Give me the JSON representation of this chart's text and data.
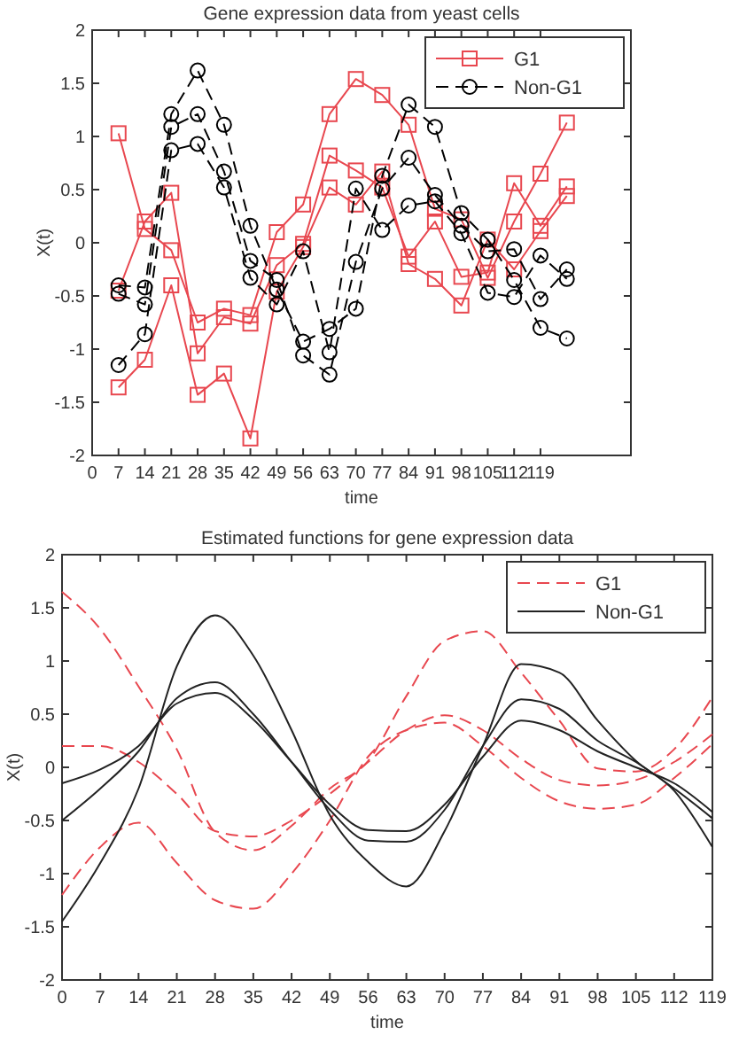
{
  "chart_data": [
    {
      "type": "line",
      "title": "Gene expression data from yeast cells",
      "xlabel": "time",
      "ylabel": "X(t)",
      "x": [
        7,
        14,
        21,
        28,
        35,
        42,
        49,
        56,
        63,
        70,
        77,
        84,
        91,
        98,
        105,
        112,
        119,
        126
      ],
      "xlim": [
        0,
        143
      ],
      "xticks": [
        0,
        7,
        14,
        21,
        28,
        35,
        42,
        49,
        56,
        63,
        70,
        77,
        84,
        91,
        98,
        105,
        112,
        119
      ],
      "ylim": [
        -2,
        2
      ],
      "yticks": [
        -2,
        -1.5,
        -1,
        -0.5,
        0,
        0.5,
        1,
        1.5,
        2
      ],
      "legend": "top right",
      "grid": false,
      "series": [
        {
          "name": "G1",
          "color": "#e8474f",
          "marker": "square",
          "line_style": "solid",
          "values": [
            1.03,
            0.13,
            -0.07,
            -0.75,
            -0.62,
            -0.68,
            0.1,
            0.36,
            1.21,
            1.54,
            1.39,
            1.11,
            0.32,
            0.22,
            -0.33,
            0.2,
            0.65,
            1.13
          ]
        },
        {
          "color": "#e8474f",
          "marker": "square",
          "line_style": "solid",
          "values": [
            -0.45,
            0.2,
            0.47,
            -1.04,
            -0.7,
            -0.76,
            -0.21,
            -0.01,
            0.82,
            0.68,
            0.52,
            -0.13,
            0.2,
            -0.32,
            -0.28,
            0.56,
            0.16,
            0.53
          ]
        },
        {
          "color": "#e8474f",
          "marker": "square",
          "line_style": "solid",
          "values": [
            -1.36,
            -1.1,
            -0.4,
            -1.43,
            -1.23,
            -1.84,
            -0.46,
            -0.04,
            0.52,
            0.36,
            0.67,
            -0.2,
            -0.34,
            -0.59,
            0.03,
            -0.25,
            0.11,
            0.44
          ]
        },
        {
          "name": "Non-G1",
          "color": "#000000",
          "marker": "circle",
          "line_style": "dashed",
          "values": [
            -0.4,
            -0.42,
            1.21,
            1.62,
            1.11,
            0.16,
            -0.44,
            -0.93,
            -0.81,
            -0.62,
            0.63,
            1.3,
            1.09,
            0.28,
            0.03,
            -0.35,
            -0.8,
            -0.9
          ]
        },
        {
          "color": "#000000",
          "marker": "circle",
          "line_style": "dashed",
          "values": [
            -0.48,
            -0.58,
            1.09,
            1.21,
            0.67,
            -0.17,
            -0.35,
            -1.06,
            -1.24,
            -0.18,
            0.51,
            0.8,
            0.45,
            0.16,
            -0.08,
            -0.06,
            -0.53,
            -0.25
          ]
        },
        {
          "color": "#000000",
          "marker": "circle",
          "line_style": "dashed",
          "values": [
            -1.15,
            -0.86,
            0.87,
            0.93,
            0.52,
            -0.33,
            -0.58,
            -0.08,
            -1.03,
            0.51,
            0.12,
            0.35,
            0.39,
            0.09,
            -0.47,
            -0.51,
            -0.12,
            -0.34
          ]
        }
      ]
    },
    {
      "type": "line",
      "title": "Estimated functions for gene expression data",
      "xlabel": "time",
      "ylabel": "X(t)",
      "x": [
        0,
        7,
        14,
        21,
        28,
        35,
        42,
        49,
        56,
        63,
        70,
        77,
        84,
        91,
        98,
        105,
        112,
        119
      ],
      "xlim": [
        0,
        119
      ],
      "xticks": [
        0,
        7,
        14,
        21,
        28,
        35,
        42,
        49,
        56,
        63,
        70,
        77,
        84,
        91,
        98,
        105,
        112,
        119
      ],
      "ylim": [
        -2,
        2
      ],
      "yticks": [
        -2,
        -1.5,
        -1,
        -0.5,
        0,
        0.5,
        1,
        1.5,
        2
      ],
      "legend": "top right",
      "grid": false,
      "series": [
        {
          "name": "G1",
          "color": "#e8474f",
          "marker": "none",
          "line_style": "dashed",
          "values": [
            1.65,
            1.3,
            0.76,
            0.17,
            -0.61,
            -0.78,
            -0.55,
            -0.2,
            0.06,
            0.67,
            1.19,
            1.28,
            0.89,
            0.44,
            -0.01,
            -0.04,
            0.17,
            0.66
          ]
        },
        {
          "color": "#e8474f",
          "marker": "none",
          "line_style": "dashed",
          "values": [
            0.2,
            0.2,
            0.05,
            -0.25,
            -0.6,
            -0.65,
            -0.5,
            -0.25,
            0.05,
            0.35,
            0.49,
            0.35,
            0.08,
            -0.12,
            -0.17,
            -0.12,
            0.05,
            0.31
          ]
        },
        {
          "color": "#e8474f",
          "marker": "none",
          "line_style": "dashed",
          "values": [
            -1.2,
            -0.75,
            -0.52,
            -0.9,
            -1.25,
            -1.33,
            -1.0,
            -0.5,
            0.1,
            0.35,
            0.42,
            0.2,
            -0.1,
            -0.32,
            -0.39,
            -0.35,
            -0.1,
            0.22
          ]
        },
        {
          "name": "Non-G1",
          "color": "#222222",
          "marker": "none",
          "line_style": "solid",
          "values": [
            -1.45,
            -0.9,
            -0.2,
            0.95,
            1.43,
            1.05,
            0.35,
            -0.45,
            -0.89,
            -1.12,
            -0.6,
            0.2,
            0.97,
            0.89,
            0.44,
            0.06,
            -0.22,
            -0.75
          ]
        },
        {
          "color": "#222222",
          "marker": "none",
          "line_style": "solid",
          "values": [
            -0.5,
            -0.2,
            0.15,
            0.65,
            0.8,
            0.5,
            0.05,
            -0.4,
            -0.69,
            -0.7,
            -0.4,
            0.2,
            0.64,
            0.55,
            0.25,
            0.05,
            -0.2,
            -0.48
          ]
        },
        {
          "color": "#222222",
          "marker": "none",
          "line_style": "solid",
          "values": [
            -0.15,
            -0.02,
            0.2,
            0.6,
            0.7,
            0.45,
            0.05,
            -0.35,
            -0.59,
            -0.6,
            -0.35,
            0.1,
            0.44,
            0.35,
            0.15,
            0,
            -0.15,
            -0.42
          ]
        }
      ]
    }
  ]
}
